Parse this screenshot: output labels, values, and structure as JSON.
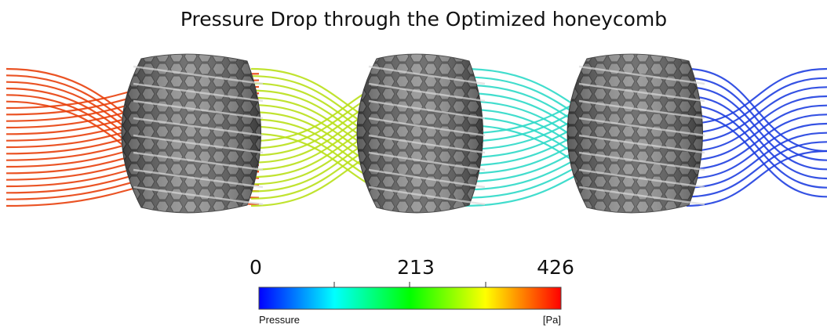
{
  "title": "Pressure Drop through the Optimized honeycomb",
  "legend": {
    "labels": [
      "0",
      "213",
      "426"
    ],
    "quantity": "Pressure",
    "unit": "[Pa]"
  }
}
